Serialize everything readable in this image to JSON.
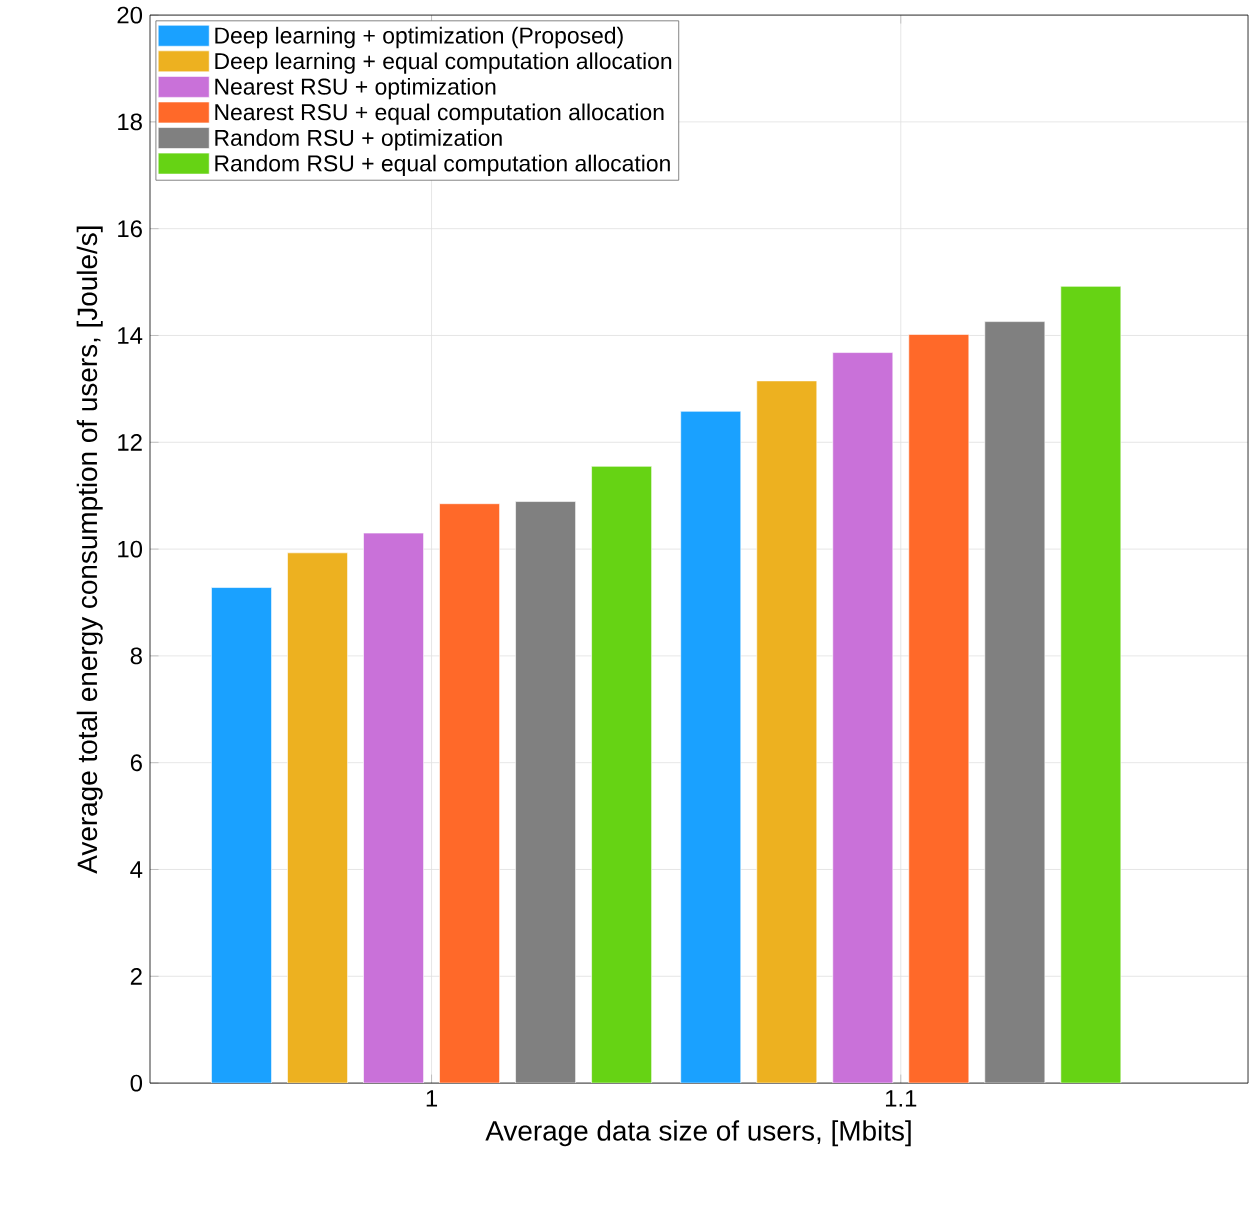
{
  "chart_data": {
    "type": "bar",
    "xlabel": "Average data size of users, [Mbits]",
    "ylabel": "Average total energy consumption of users, [Joule/s]",
    "categories": [
      "1",
      "1.1"
    ],
    "series": [
      {
        "name": "Deep learning + optimization (Proposed)",
        "color": "#1aa1ff",
        "values": [
          9.28,
          12.58
        ]
      },
      {
        "name": "Deep learning + equal computation allocation",
        "color": "#edb120",
        "values": [
          9.93,
          13.15
        ]
      },
      {
        "name": "Nearest RSU + optimization",
        "color": "#c971d9",
        "values": [
          10.3,
          13.68
        ]
      },
      {
        "name": "Nearest RSU + equal computation allocation",
        "color": "#ff6929",
        "values": [
          10.85,
          14.02
        ]
      },
      {
        "name": "Random RSU + optimization",
        "color": "#808080",
        "values": [
          10.89,
          14.26
        ]
      },
      {
        "name": "Random RSU + equal computation allocation",
        "color": "#66d314",
        "values": [
          11.55,
          14.92
        ]
      }
    ],
    "ylim": [
      0,
      20
    ],
    "yticks": [
      0,
      2,
      4,
      6,
      8,
      10,
      12,
      14,
      16,
      18,
      20
    ],
    "grid": true,
    "legend": "top left"
  }
}
